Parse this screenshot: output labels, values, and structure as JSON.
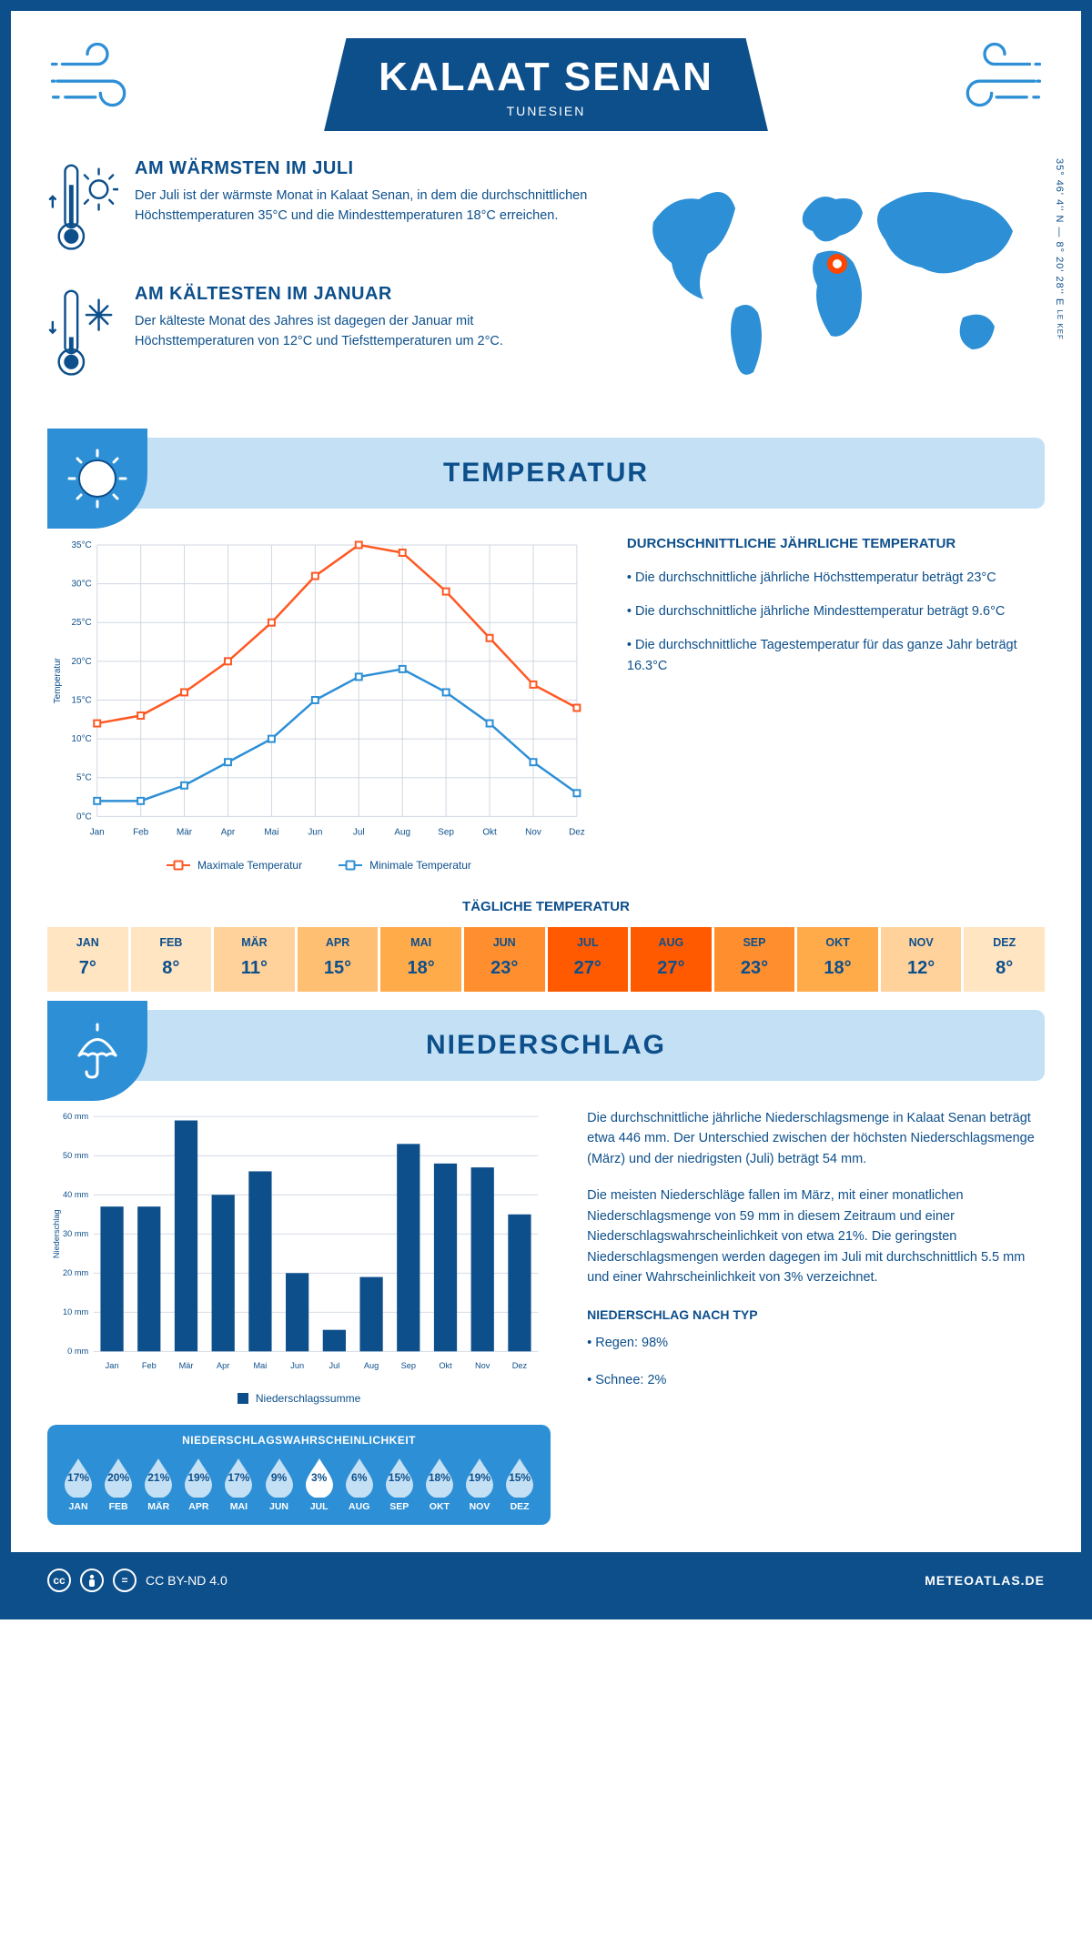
{
  "header": {
    "title": "KALAAT SENAN",
    "subtitle": "TUNESIEN"
  },
  "coords": {
    "text": "35° 46' 4'' N — 8° 20' 28'' E",
    "region": "LE KEF"
  },
  "marker": {
    "left_pct": 48,
    "top_pct": 38
  },
  "warm": {
    "heading": "AM WÄRMSTEN IM JULI",
    "body": "Der Juli ist der wärmste Monat in Kalaat Senan, in dem die durchschnittlichen Höchsttemperaturen 35°C und die Mindesttemperaturen 18°C erreichen."
  },
  "cold": {
    "heading": "AM KÄLTESTEN IM JANUAR",
    "body": "Der kälteste Monat des Jahres ist dagegen der Januar mit Höchsttemperaturen von 12°C und Tiefsttemperaturen um 2°C."
  },
  "temperature": {
    "section_title": "TEMPERATUR",
    "chart": {
      "type": "line",
      "months": [
        "Jan",
        "Feb",
        "Mär",
        "Apr",
        "Mai",
        "Jun",
        "Jul",
        "Aug",
        "Sep",
        "Okt",
        "Nov",
        "Dez"
      ],
      "ylabel": "Temperatur",
      "ylim": [
        0,
        35
      ],
      "ytick_step": 5,
      "ytick_suffix": "°C",
      "grid_color": "#d0d7e2",
      "series": [
        {
          "name": "Maximale Temperatur",
          "color": "#ff5722",
          "values": [
            12,
            13,
            16,
            20,
            25,
            31,
            35,
            34,
            29,
            23,
            17,
            14
          ]
        },
        {
          "name": "Minimale Temperatur",
          "color": "#2d8fd6",
          "values": [
            2,
            2,
            4,
            7,
            10,
            15,
            18,
            19,
            16,
            12,
            7,
            3
          ]
        }
      ]
    },
    "side": {
      "heading": "DURCHSCHNITTLICHE JÄHRLICHE TEMPERATUR",
      "b1": "• Die durchschnittliche jährliche Höchsttemperatur beträgt 23°C",
      "b2": "• Die durchschnittliche jährliche Mindesttemperatur beträgt 9.6°C",
      "b3": "• Die durchschnittliche Tagestemperatur für das ganze Jahr beträgt 16.3°C"
    },
    "daily": {
      "title": "TÄGLICHE TEMPERATUR",
      "months": [
        "JAN",
        "FEB",
        "MÄR",
        "APR",
        "MAI",
        "JUN",
        "JUL",
        "AUG",
        "SEP",
        "OKT",
        "NOV",
        "DEZ"
      ],
      "values": [
        "7°",
        "8°",
        "11°",
        "15°",
        "18°",
        "23°",
        "27°",
        "27°",
        "23°",
        "18°",
        "12°",
        "8°"
      ],
      "colors": [
        "#ffe5c2",
        "#ffe5c2",
        "#ffd29b",
        "#ffbf73",
        "#ffab4a",
        "#ff8f2e",
        "#ff5a00",
        "#ff5a00",
        "#ff8f2e",
        "#ffab4a",
        "#ffd29b",
        "#ffe5c2"
      ]
    }
  },
  "precip": {
    "section_title": "NIEDERSCHLAG",
    "chart": {
      "type": "bar",
      "months": [
        "Jan",
        "Feb",
        "Mär",
        "Apr",
        "Mai",
        "Jun",
        "Jul",
        "Aug",
        "Sep",
        "Okt",
        "Nov",
        "Dez"
      ],
      "ylabel": "Niederschlag",
      "ylim": [
        0,
        60
      ],
      "ytick_step": 10,
      "ytick_suffix": " mm",
      "grid_color": "#d0d7e2",
      "bar_color": "#0d4f8b",
      "legend": "Niederschlagssumme",
      "values": [
        37,
        37,
        59,
        40,
        46,
        20,
        5.5,
        19,
        53,
        48,
        47,
        35
      ]
    },
    "side": {
      "p1": "Die durchschnittliche jährliche Niederschlagsmenge in Kalaat Senan beträgt etwa 446 mm. Der Unterschied zwischen der höchsten Niederschlagsmenge (März) und der niedrigsten (Juli) beträgt 54 mm.",
      "p2": "Die meisten Niederschläge fallen im März, mit einer monatlichen Niederschlagsmenge von 59 mm in diesem Zeitraum und einer Niederschlagswahrscheinlichkeit von etwa 21%. Die geringsten Niederschlagsmengen werden dagegen im Juli mit durchschnittlich 5.5 mm und einer Wahrscheinlichkeit von 3% verzeichnet.",
      "type_heading": "NIEDERSCHLAG NACH TYP",
      "t1": "• Regen: 98%",
      "t2": "• Schnee: 2%"
    },
    "prob": {
      "title": "NIEDERSCHLAGSWAHRSCHEINLICHKEIT",
      "months": [
        "JAN",
        "FEB",
        "MÄR",
        "APR",
        "MAI",
        "JUN",
        "JUL",
        "AUG",
        "SEP",
        "OKT",
        "NOV",
        "DEZ"
      ],
      "values": [
        17,
        20,
        21,
        19,
        17,
        9,
        3,
        6,
        15,
        18,
        19,
        15
      ],
      "fill_color": "#c3e0f5",
      "min_color": "#ffffff",
      "text_color": "#0d4f8b"
    }
  },
  "footer": {
    "license": "CC BY-ND 4.0",
    "site": "METEOATLAS.DE"
  },
  "palette": {
    "primary": "#0d4f8b",
    "light": "#c3e0f5",
    "mid": "#2d8fd6",
    "orange": "#ff5722"
  }
}
